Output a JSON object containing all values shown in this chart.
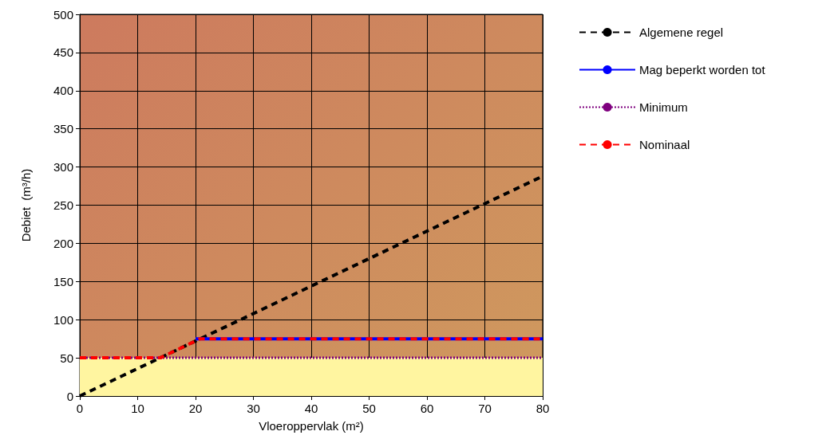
{
  "chart_data": {
    "type": "line",
    "xlabel": "Vloeroppervlak (m²)",
    "ylabel": "Debiet  (m³/h)",
    "xlim": [
      0,
      80
    ],
    "xticks": [
      0,
      10,
      20,
      30,
      40,
      50,
      60,
      70,
      80
    ],
    "ylim": [
      0,
      500
    ],
    "yticks": [
      0,
      50,
      100,
      150,
      200,
      250,
      300,
      350,
      400,
      450,
      500
    ],
    "grid": true,
    "legend": "right",
    "marker": "none",
    "bands": [
      {
        "axis": "y",
        "from": 0,
        "to": 50,
        "color": "#fff5a0"
      }
    ],
    "series": [
      {
        "name": "Algemene regel",
        "color": "#000000",
        "line_style": "dashed",
        "x": [
          0,
          80
        ],
        "values": [
          0,
          288
        ]
      },
      {
        "name": "Mag beperkt worden tot",
        "color": "#0000ff",
        "line_style": "solid",
        "x": [
          20,
          80
        ],
        "values": [
          75,
          75
        ]
      },
      {
        "name": "Minimum",
        "color": "#7f007f",
        "line_style": "dotted",
        "x": [
          0,
          80
        ],
        "values": [
          50,
          50
        ]
      },
      {
        "name": "Nominaal",
        "color": "#ff0000",
        "line_style": "dashed",
        "x": [
          0,
          13.9,
          20.8,
          80
        ],
        "values": [
          50,
          50,
          75,
          75
        ]
      }
    ]
  }
}
